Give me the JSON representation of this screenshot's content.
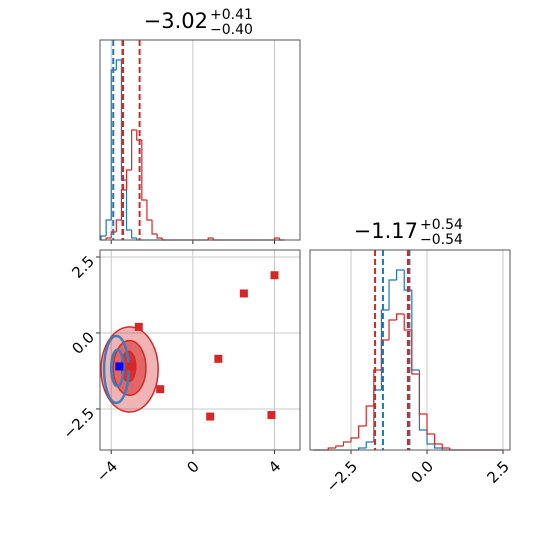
{
  "chart_data": [
    {
      "type": "histogram",
      "title": "−3.02",
      "title_sup": "+0.41",
      "title_sub": "−0.40",
      "bins": [
        -4.5,
        -4.25,
        -4,
        -3.75,
        -3.5,
        -3.25,
        -3,
        -2.75,
        -2.5,
        -2.25,
        -2,
        -1.75,
        -1.5,
        -1.25,
        -1,
        -0.75,
        -0.5,
        -0.25,
        0,
        0.25,
        0.5,
        0.75,
        1,
        1.25,
        1.5,
        1.75,
        2,
        2.25,
        2.5,
        2.75,
        3,
        3.25,
        3.5,
        3.75,
        4,
        4.25,
        4.5
      ],
      "series": [
        {
          "color": "#1f77b4",
          "quantiles": [
            -3.9,
            -3.45
          ],
          "values": [
            2,
            10,
            85,
            90,
            30,
            5,
            1,
            0,
            0,
            0,
            0,
            0,
            0,
            0,
            0,
            0,
            0,
            0,
            0,
            0,
            0,
            0,
            0,
            0,
            0,
            0,
            0,
            0,
            0,
            0,
            0,
            0,
            0,
            0,
            0,
            0
          ]
        },
        {
          "color": "#d62728",
          "quantiles": [
            -3.42,
            -2.61
          ],
          "values": [
            0,
            1,
            4,
            10,
            25,
            35,
            55,
            50,
            20,
            10,
            3,
            1,
            0,
            0,
            0,
            0,
            0,
            0,
            0,
            0,
            0,
            1,
            0,
            0,
            0,
            0,
            0,
            0,
            0,
            0,
            0,
            0,
            0,
            0,
            1,
            0
          ]
        }
      ],
      "xlim": [
        -4.55,
        5.25
      ],
      "ylim": [
        0,
        100
      ],
      "xticks": [
        -4,
        0,
        4
      ],
      "grid": true
    },
    {
      "type": "scatter",
      "series": [
        {
          "color": "#d62728",
          "x": [
            -2.65,
            -3.05,
            -1.6,
            1.25,
            2.5,
            4.0,
            0.85,
            3.85
          ],
          "y": [
            0.2,
            -1.1,
            -1.85,
            -0.85,
            1.3,
            1.9,
            -2.75,
            -2.7
          ],
          "contours": [
            {
              "cx": -3.1,
              "cy": -1.2,
              "rx": 1.4,
              "ry": 1.4
            },
            {
              "cx": -3.1,
              "cy": -1.15,
              "rx": 0.8,
              "ry": 0.9
            },
            {
              "cx": -3.15,
              "cy": -1.1,
              "rx": 0.35,
              "ry": 0.5
            }
          ]
        },
        {
          "color": "#0000ff",
          "x": [
            -3.6
          ],
          "y": [
            -1.1
          ],
          "contours": [
            {
              "cx": -3.75,
              "cy": -1.2,
              "rx": 0.6,
              "ry": 1.1
            },
            {
              "cx": -3.7,
              "cy": -1.15,
              "rx": 0.3,
              "ry": 0.6
            }
          ]
        }
      ],
      "xlim": [
        -4.55,
        5.25
      ],
      "ylim": [
        -3.85,
        2.73
      ],
      "xticks": [
        {
          "value": -4,
          "label": "−4"
        },
        0,
        4
      ],
      "yticks": [
        {
          "value": 2.5,
          "label": "2.5"
        },
        {
          "value": 0,
          "label": "0.0"
        },
        {
          "value": -2.5,
          "label": "−2.5"
        }
      ],
      "grid": true
    },
    {
      "type": "histogram",
      "title": "−1.17",
      "title_sup": "+0.54",
      "title_sub": "−0.54",
      "bins": [
        -3.75,
        -3.5,
        -3.25,
        -3,
        -2.75,
        -2.5,
        -2.25,
        -2,
        -1.75,
        -1.5,
        -1.25,
        -1,
        -0.75,
        -0.5,
        -0.25,
        0,
        0.25,
        0.5,
        0.75,
        1,
        1.25,
        1.5,
        1.75,
        2,
        2.25,
        2.5
      ],
      "series": [
        {
          "color": "#1f77b4",
          "quantiles": [
            -1.45,
            -0.58
          ],
          "values": [
            0,
            0,
            0,
            0,
            0,
            0,
            1,
            4,
            30,
            70,
            85,
            90,
            80,
            40,
            10,
            3,
            1,
            0,
            0,
            0,
            0,
            0,
            0,
            0,
            0
          ]
        },
        {
          "color": "#d62728",
          "quantiles": [
            -1.71,
            -0.63
          ],
          "values": [
            0,
            0,
            1,
            2,
            4,
            6,
            12,
            22,
            40,
            55,
            65,
            68,
            60,
            38,
            18,
            8,
            3,
            1,
            0,
            0,
            0,
            0,
            0,
            0,
            0
          ]
        }
      ],
      "xlim": [
        -3.85,
        2.73
      ],
      "ylim": [
        0,
        100
      ],
      "xticks": [
        {
          "value": -2.5,
          "label": "−2.5"
        },
        {
          "value": 0,
          "label": "0.0"
        },
        {
          "value": 2.5,
          "label": "2.5"
        }
      ],
      "grid": true
    }
  ]
}
